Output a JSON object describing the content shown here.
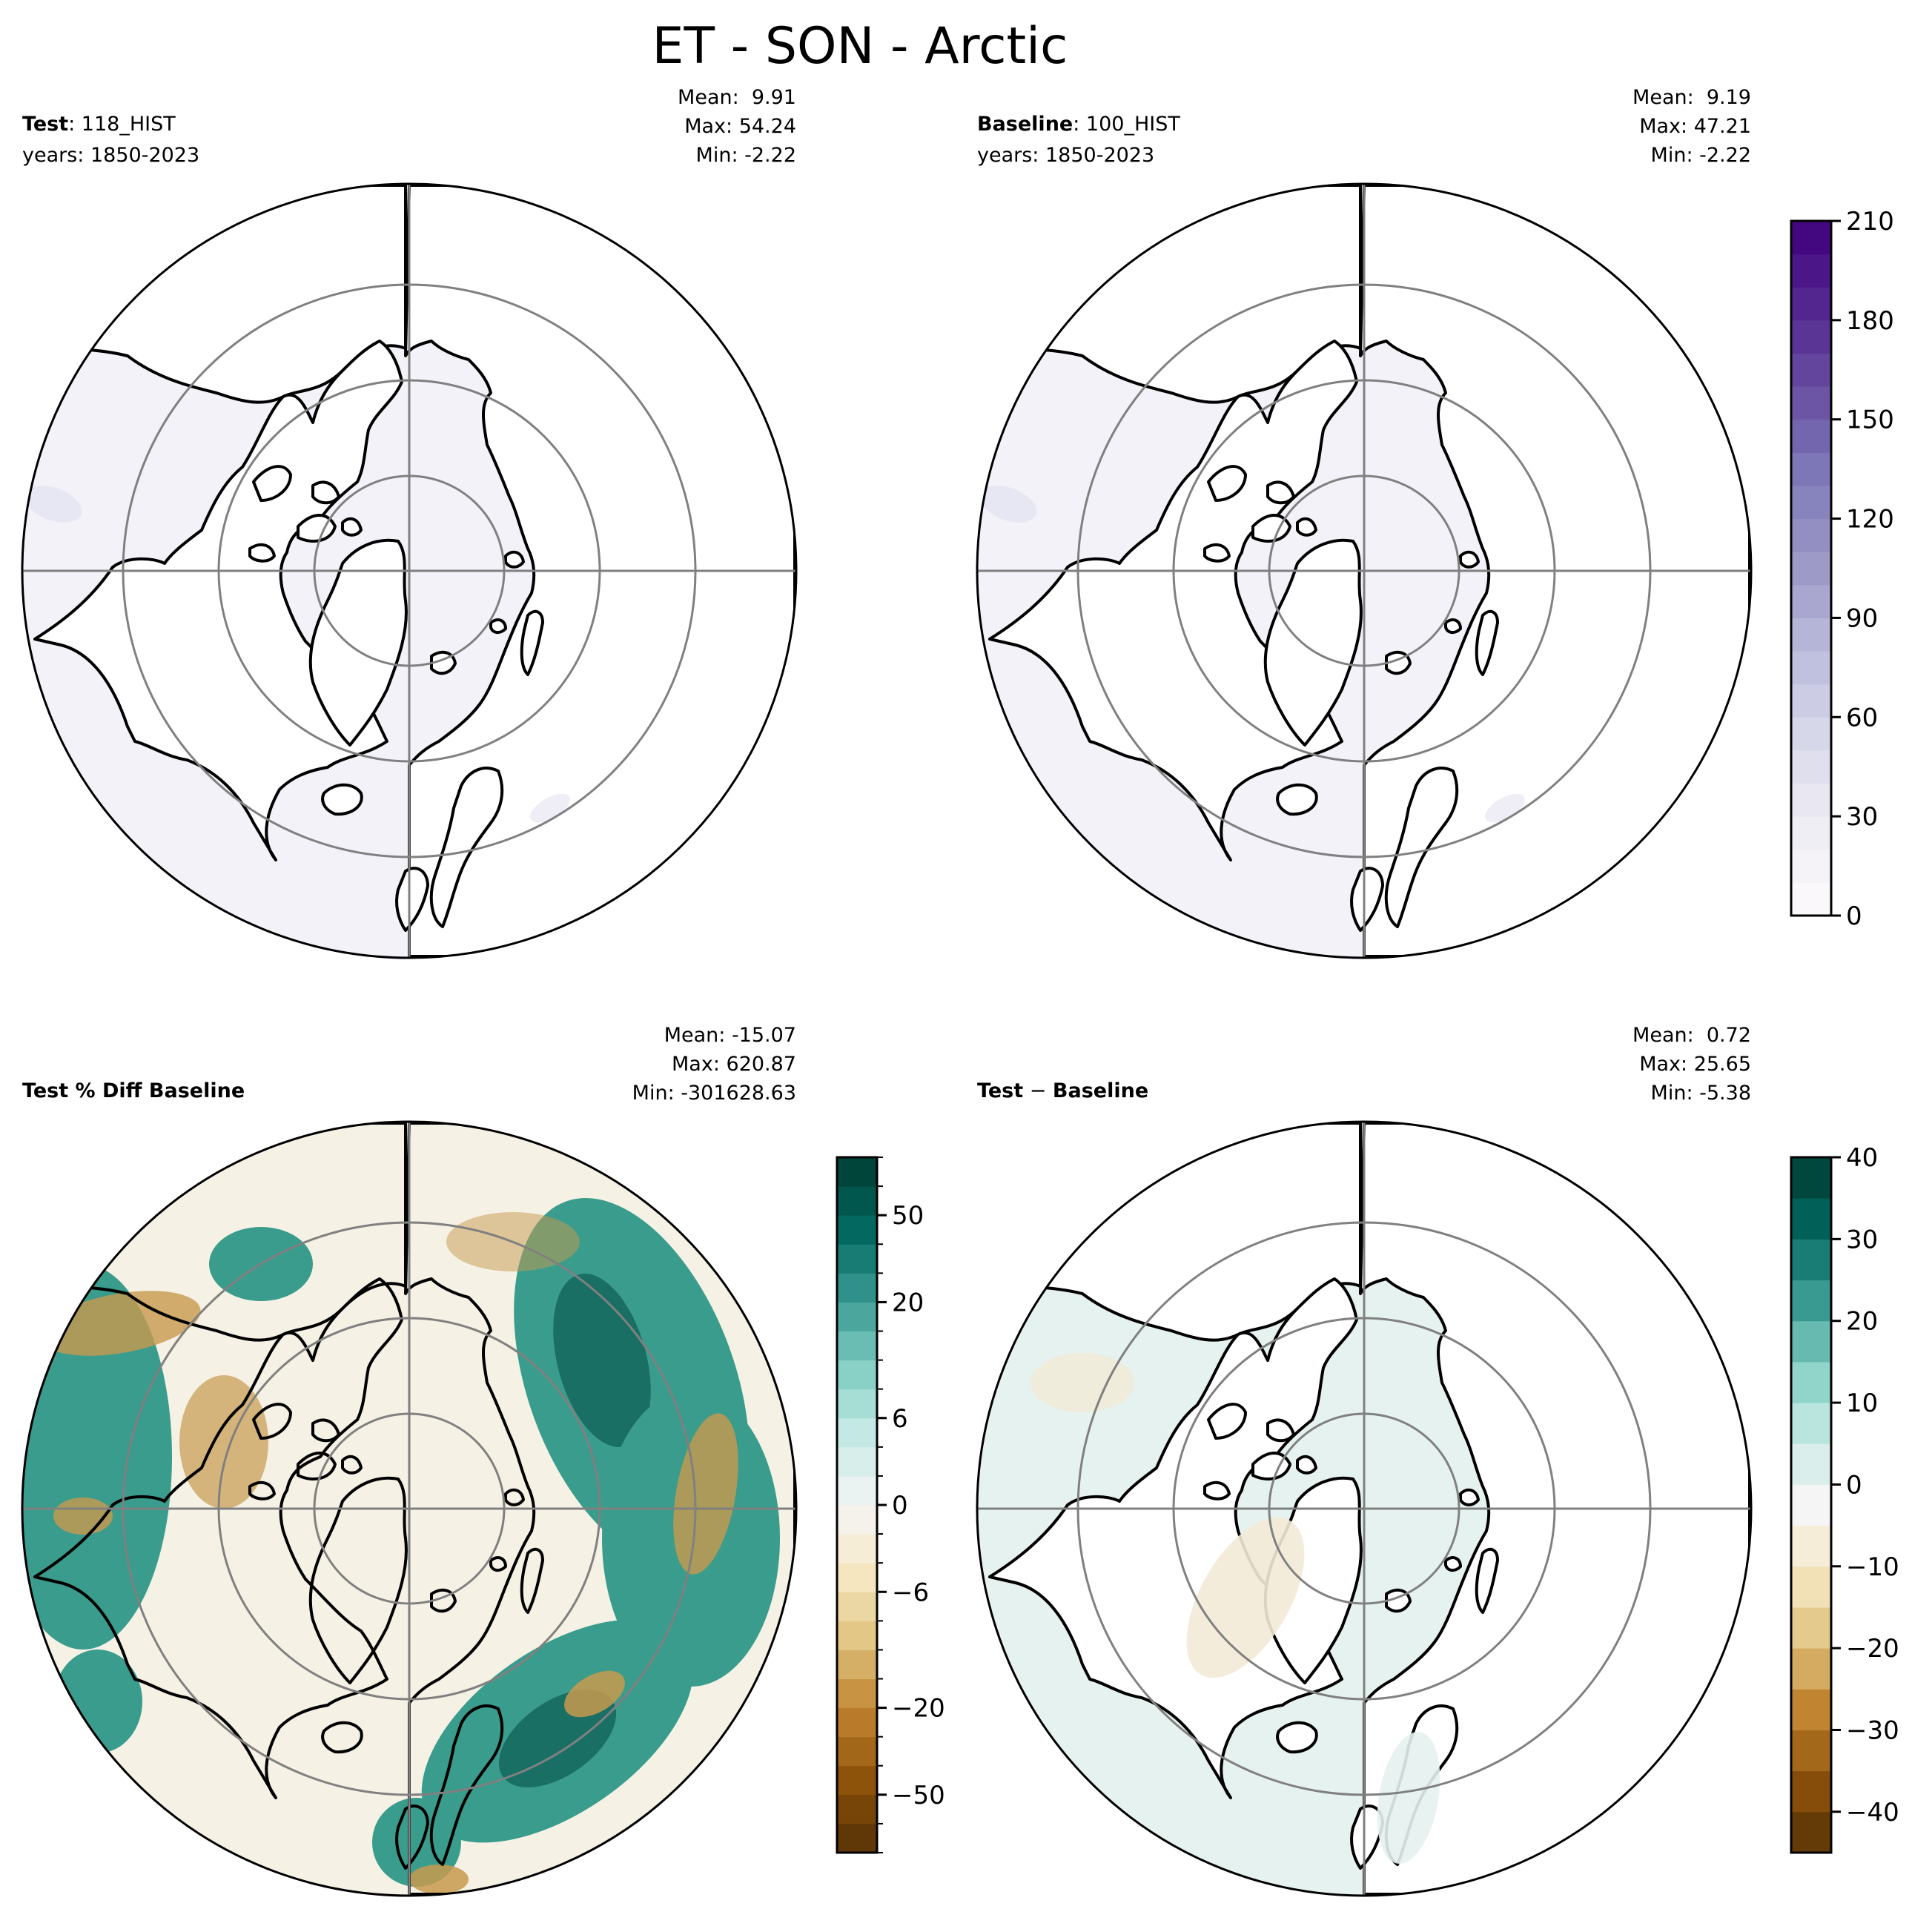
{
  "figure": {
    "title": "ET - SON - Arctic"
  },
  "colors": {
    "land_line": "#000000",
    "grid_line": "#808080",
    "frame": "#000000"
  },
  "panels": [
    {
      "id": "test",
      "label_bold": "Test",
      "label_rest": ": 118_HIST",
      "years": "years: 1850-2023",
      "stats": {
        "mean": "Mean:  9.91",
        "max": "Max: 54.24",
        "min": "Min: -2.22"
      },
      "fill": {
        "ocean": "#f3f2f8",
        "land": "#ffffff",
        "spots": "#e4e3f1"
      }
    },
    {
      "id": "baseline",
      "label_bold": "Baseline",
      "label_rest": ": 100_HIST",
      "years": "years: 1850-2023",
      "stats": {
        "mean": "Mean:  9.19",
        "max": "Max: 47.21",
        "min": "Min: -2.22"
      },
      "fill": {
        "ocean": "#f3f2f8",
        "land": "#ffffff",
        "spots": "#e4e3f1"
      }
    },
    {
      "id": "pct_diff",
      "label_bold": "Test % Diff Baseline",
      "label_rest": "",
      "years": "",
      "stats": {
        "mean": "Mean: -15.07",
        "max": "Max: 620.87",
        "min": "Min: -301628.63"
      },
      "fill": {
        "ocean": "#f5f1e5",
        "land": "#f5f1e5",
        "teal": "#3a9c8c",
        "teal_dark": "#1a6f65",
        "brown": "#c89a4e"
      }
    },
    {
      "id": "diff",
      "label_bold": "Test",
      "label_rest": " − ",
      "label_bold2": "Baseline",
      "years": "",
      "stats": {
        "mean": "Mean:  0.72",
        "max": "Max: 25.65",
        "min": "Min: -5.38"
      },
      "fill": {
        "ocean": "#e6f2ef",
        "land": "#ffffff",
        "tan": "#f3ead6"
      }
    }
  ],
  "chart_data": [
    {
      "type": "heatmap",
      "name": "Test",
      "variable": "ET",
      "season": "SON",
      "region": "Arctic",
      "case": "118_HIST",
      "years": "1850-2023",
      "mean": 9.91,
      "max": 54.24,
      "min": -2.22,
      "colormap": "Purples",
      "colorbar_range": [
        0,
        210
      ]
    },
    {
      "type": "heatmap",
      "name": "Baseline",
      "variable": "ET",
      "season": "SON",
      "region": "Arctic",
      "case": "100_HIST",
      "years": "1850-2023",
      "mean": 9.19,
      "max": 47.21,
      "min": -2.22,
      "colormap": "Purples",
      "colorbar_range": [
        0,
        210
      ]
    },
    {
      "type": "heatmap",
      "name": "Test % Diff Baseline",
      "mean": -15.07,
      "max": 620.87,
      "min": -301628.63,
      "colormap": "BrBG",
      "colorbar_levels": [
        -100,
        -75,
        -50,
        -40,
        -30,
        -20,
        -15,
        -10,
        -8,
        -6,
        -4,
        -2,
        0,
        2,
        4,
        6,
        8,
        10,
        15,
        20,
        30,
        40,
        50,
        75,
        100
      ]
    },
    {
      "type": "heatmap",
      "name": "Test − Baseline",
      "mean": 0.72,
      "max": 25.65,
      "min": -5.38,
      "colormap": "BrBG",
      "colorbar_range": [
        -45,
        40
      ]
    }
  ],
  "colorbars": {
    "top": {
      "ticks": [
        "0",
        "30",
        "60",
        "90",
        "120",
        "150",
        "180",
        "210"
      ],
      "tick_values": [
        0,
        30,
        60,
        90,
        120,
        150,
        180,
        210
      ],
      "range": [
        0,
        210
      ],
      "n_levels": 21,
      "colors": [
        "#fcfbfd",
        "#efedf5",
        "#dadaeb",
        "#bcbddc",
        "#9e9ac8",
        "#807dba",
        "#6a51a3",
        "#54278f",
        "#3f007d"
      ]
    },
    "pct": {
      "ticks": [
        "−50",
        "−20",
        "−6",
        "0",
        "6",
        "20",
        "50"
      ],
      "tick_values": [
        -50,
        -20,
        -6,
        0,
        6,
        20,
        50
      ],
      "levels": [
        -100,
        -75,
        -50,
        -40,
        -30,
        -20,
        -15,
        -10,
        -8,
        -6,
        -4,
        -2,
        0,
        2,
        4,
        6,
        8,
        10,
        15,
        20,
        30,
        40,
        50,
        75,
        100
      ],
      "colors": [
        "#543005",
        "#8c510a",
        "#bf812d",
        "#dfc27d",
        "#f6e8c3",
        "#f5f5f5",
        "#c7eae5",
        "#80cdc1",
        "#35978f",
        "#01665e",
        "#003c30"
      ]
    },
    "diff": {
      "ticks": [
        "−40",
        "−30",
        "−20",
        "−10",
        "0",
        "10",
        "20",
        "30",
        "40"
      ],
      "tick_values": [
        -40,
        -30,
        -20,
        -10,
        0,
        10,
        20,
        30,
        40
      ],
      "range": [
        -45,
        40
      ],
      "n_levels": 17,
      "colors": [
        "#543005",
        "#8c510a",
        "#bf812d",
        "#dfc27d",
        "#f6e8c3",
        "#f5f5f5",
        "#c7eae5",
        "#80cdc1",
        "#35978f",
        "#01665e",
        "#003c30"
      ]
    }
  }
}
